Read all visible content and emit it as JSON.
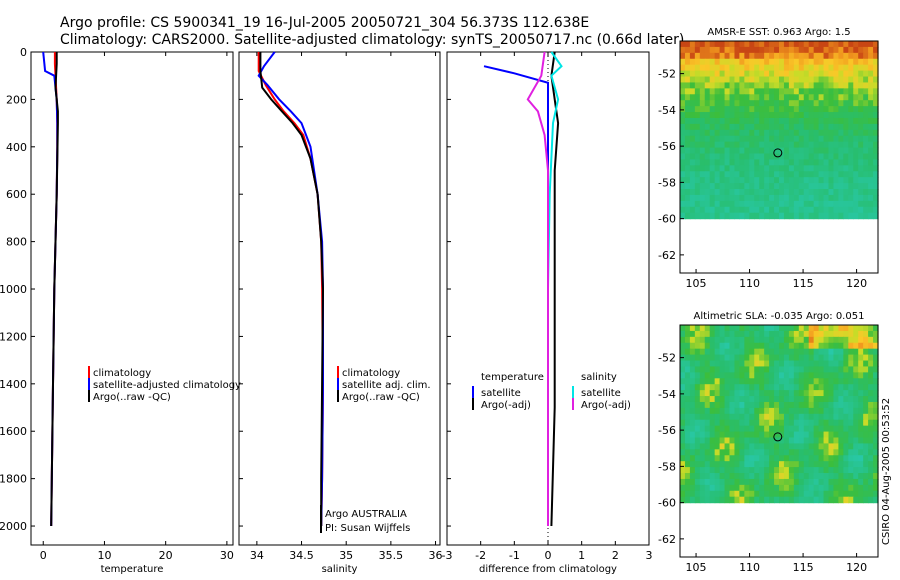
{
  "title": {
    "line1": "Argo profile: CS 5900341_19 16-Jul-2005 20050721_304 56.373S 112.638E",
    "line2": "Climatology: CARS2000. Satellite-adjusted climatology: synTS_20050717.nc (0.66d later)"
  },
  "colors": {
    "climatology": "#ff0000",
    "satellite": "#0000ff",
    "argo": "#000000",
    "salinity_satellite": "#00e5e5",
    "salinity_argo": "#e020e0"
  },
  "chart_data": [
    {
      "type": "line",
      "panel": "temperature",
      "xlabel": "temperature",
      "ylabel": "",
      "xlim": [
        -2,
        31
      ],
      "ylim": [
        2080,
        0
      ],
      "xticks": [
        0,
        10,
        20,
        30
      ],
      "yticks": [
        0,
        200,
        400,
        600,
        800,
        1000,
        1200,
        1400,
        1600,
        1800,
        2000
      ],
      "legend": [
        "climatology",
        "satellite-adjusted climatology",
        "Argo(..raw -QC)"
      ],
      "series": [
        {
          "name": "climatology",
          "color": "#ff0000",
          "x": [
            1.9,
            1.9,
            2.0,
            2.2,
            2.3,
            2.3,
            2.2,
            2.0,
            1.8,
            1.6,
            1.4,
            1.3
          ],
          "y": [
            0,
            50,
            100,
            200,
            300,
            400,
            600,
            800,
            1000,
            1400,
            1800,
            2000
          ]
        },
        {
          "name": "satellite-adjusted climatology",
          "color": "#0000ff",
          "x": [
            0.0,
            0.3,
            1.8,
            2.0,
            2.2,
            2.3,
            2.3,
            2.2,
            2.0,
            1.8,
            1.6,
            1.4,
            1.3
          ],
          "y": [
            0,
            80,
            100,
            150,
            200,
            300,
            400,
            600,
            800,
            1000,
            1400,
            1800,
            2000
          ]
        },
        {
          "name": "Argo(..raw -QC)",
          "color": "#000000",
          "x": [
            2.2,
            2.2,
            2.0,
            2.4,
            2.4,
            2.3,
            2.2,
            2.0,
            1.8,
            1.6,
            1.4,
            1.3
          ],
          "y": [
            0,
            50,
            150,
            250,
            300,
            450,
            600,
            800,
            1000,
            1400,
            1800,
            2000
          ]
        }
      ]
    },
    {
      "type": "line",
      "panel": "salinity",
      "xlabel": "salinity",
      "ylabel": "",
      "xlim": [
        33.8,
        36.05
      ],
      "ylim": [
        2080,
        0
      ],
      "xticks": [
        34,
        34.5,
        35,
        35.5,
        36
      ],
      "legend": [
        "climatology",
        "satellite adj. clim.",
        "Argo(..raw -QC)"
      ],
      "annotations": [
        "Argo AUSTRALIA",
        "PI: Susan Wijffels"
      ],
      "series": [
        {
          "name": "climatology",
          "color": "#ff0000",
          "x": [
            34.02,
            34.02,
            34.1,
            34.2,
            34.3,
            34.42,
            34.52,
            34.6,
            34.68,
            34.72,
            34.73,
            34.74,
            34.73,
            34.72
          ],
          "y": [
            0,
            80,
            140,
            200,
            250,
            300,
            350,
            450,
            600,
            800,
            1000,
            1400,
            1800,
            2000
          ]
        },
        {
          "name": "satellite adj. clim.",
          "color": "#0000ff",
          "x": [
            34.2,
            34.08,
            34.02,
            34.12,
            34.25,
            34.38,
            34.5,
            34.6,
            34.68,
            34.73,
            34.74,
            34.74,
            34.73,
            34.72
          ],
          "y": [
            0,
            60,
            100,
            140,
            200,
            250,
            300,
            400,
            600,
            800,
            1000,
            1400,
            1800,
            2000
          ]
        },
        {
          "name": "Argo(..raw -QC)",
          "color": "#000000",
          "x": [
            34.04,
            34.04,
            34.06,
            34.16,
            34.28,
            34.4,
            34.5,
            34.6,
            34.68,
            34.72,
            34.74,
            34.73,
            34.72,
            34.72
          ],
          "y": [
            0,
            80,
            150,
            200,
            250,
            300,
            350,
            450,
            600,
            800,
            1000,
            1400,
            1800,
            2000
          ]
        }
      ]
    },
    {
      "type": "line",
      "panel": "difference",
      "xlabel": "difference from climatology",
      "ylabel": "",
      "xlim": [
        -3,
        3
      ],
      "ylim": [
        2080,
        0
      ],
      "xticks": [
        -3,
        -2,
        -1,
        0,
        1,
        2,
        3
      ],
      "legend_left": {
        "title": "temperature",
        "entries": [
          "satellite",
          "Argo(-adj)"
        ]
      },
      "legend_right": {
        "title": "salinity",
        "entries": [
          "satellite",
          "Argo(-adj)"
        ]
      },
      "series": [
        {
          "name": "temperature satellite",
          "color": "#0000ff",
          "x": [
            -1.9,
            -1.0,
            0.0,
            0.0,
            0.0,
            0.0,
            0.0,
            0.0
          ],
          "y": [
            60,
            90,
            130,
            250,
            500,
            1000,
            1500,
            2000
          ]
        },
        {
          "name": "temperature Argo(-adj)",
          "color": "#000000",
          "x": [
            0.2,
            0.1,
            0.2,
            0.3,
            0.2,
            0.2,
            0.2,
            0.1
          ],
          "y": [
            0,
            100,
            200,
            300,
            500,
            1000,
            1500,
            2000
          ]
        },
        {
          "name": "salinity satellite",
          "color": "#00e5e5",
          "x": [
            0.1,
            0.4,
            0.1,
            0.3,
            0.15,
            0.05,
            0.0,
            0.0
          ],
          "y": [
            0,
            60,
            100,
            200,
            300,
            600,
            1000,
            2000
          ]
        },
        {
          "name": "salinity Argo(-adj)",
          "color": "#e020e0",
          "x": [
            -0.1,
            -0.2,
            -0.6,
            -0.3,
            -0.1,
            0.0,
            0.0,
            0.0
          ],
          "y": [
            0,
            100,
            200,
            250,
            350,
            500,
            1000,
            2000
          ]
        }
      ]
    },
    {
      "type": "heatmap",
      "panel": "sst-map",
      "title": "AMSR-E SST: 0.963 Argo: 1.5",
      "xlim": [
        103.5,
        122
      ],
      "ylim": [
        -63,
        -50.2
      ],
      "xticks": [
        105,
        110,
        115,
        120
      ],
      "yticks": [
        -52,
        -54,
        -56,
        -58,
        -60,
        -62
      ],
      "data_extent_lat": [
        -60,
        -50.2
      ],
      "marker": {
        "lon": 112.638,
        "lat": -56.373
      }
    },
    {
      "type": "heatmap",
      "panel": "sla-map",
      "title": "Altimetric SLA: -0.035 Argo: 0.051",
      "xlim": [
        103.5,
        122
      ],
      "ylim": [
        -63,
        -50.2
      ],
      "xticks": [
        105,
        110,
        115,
        120
      ],
      "yticks": [
        -52,
        -54,
        -56,
        -58,
        -60,
        -62
      ],
      "data_extent_lat": [
        -60,
        -50.2
      ],
      "marker": {
        "lon": 112.638,
        "lat": -56.373
      }
    }
  ],
  "footer": {
    "vertical_stamp": "CSIRO 04-Aug-2005 00:53:52"
  }
}
